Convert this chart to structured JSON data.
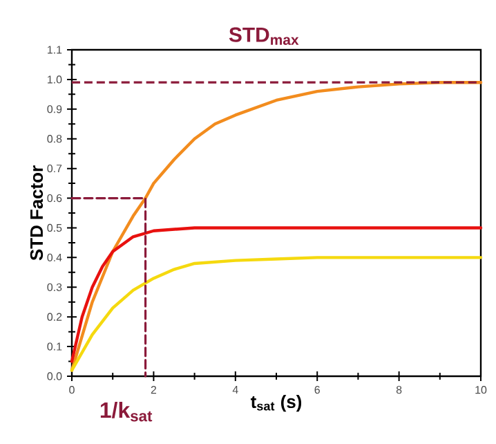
{
  "chart_data": {
    "type": "line",
    "xlabel": "t$_{sat}$ (s)",
    "ylabel": "STD Factor",
    "series": [
      {
        "color": "#f28c1e",
        "x": [
          0,
          0.5,
          1,
          1.5,
          1.8,
          2,
          2.5,
          3,
          3.5,
          4,
          5,
          6,
          7,
          8,
          9,
          10
        ],
        "values": [
          0.02,
          0.25,
          0.42,
          0.54,
          0.6,
          0.65,
          0.73,
          0.8,
          0.85,
          0.88,
          0.93,
          0.96,
          0.975,
          0.985,
          0.99,
          0.99
        ]
      },
      {
        "color": "#e8110f",
        "x": [
          0,
          0.25,
          0.5,
          0.75,
          1,
          1.5,
          2,
          3,
          4,
          10
        ],
        "values": [
          0.05,
          0.2,
          0.3,
          0.37,
          0.42,
          0.47,
          0.49,
          0.5,
          0.5,
          0.5
        ]
      },
      {
        "color": "#f5d90f",
        "x": [
          0,
          0.5,
          1,
          1.5,
          2,
          2.5,
          3,
          4,
          5,
          6,
          10
        ],
        "values": [
          0.02,
          0.14,
          0.23,
          0.29,
          0.33,
          0.36,
          0.38,
          0.39,
          0.395,
          0.4,
          0.4
        ]
      },
      {
        "color": "#8b1a3a",
        "line_style": "dashed",
        "x": [
          0,
          1.8,
          1.8
        ],
        "values": [
          0.6,
          0.6,
          0
        ]
      }
    ],
    "ref_lines": [
      {
        "axis": "y",
        "value": 0.99,
        "label": "STD$_{max}$",
        "color": "#8b1a3a",
        "line_style": "dashed"
      }
    ],
    "annotations": [
      {
        "text": "1/k$_{sat}$",
        "x": 1.8,
        "y": 0
      }
    ],
    "xlim": [
      0,
      10
    ],
    "ylim": [
      0,
      1.1
    ],
    "xticks": [
      0,
      2,
      4,
      6,
      8,
      10
    ],
    "yticks": [
      {
        "value": 0,
        "label": "0.0"
      },
      {
        "value": 0.1,
        "label": "0.1"
      },
      {
        "value": 0.2,
        "label": "0.2"
      },
      {
        "value": 0.3,
        "label": "0.3"
      },
      {
        "value": 0.4,
        "label": "0.4"
      },
      {
        "value": 0.5,
        "label": "0.5"
      },
      {
        "value": 0.6,
        "label": "0.6"
      },
      {
        "value": 0.7,
        "label": "0.7"
      },
      {
        "value": 0.8,
        "label": "0.8"
      },
      {
        "value": 0.9,
        "label": "0.9"
      },
      {
        "value": 1.0,
        "label": "1.0"
      },
      {
        "value": 1.1,
        "label": "1.1"
      }
    ],
    "grid": false,
    "marker": "none",
    "line_style": "solid"
  }
}
